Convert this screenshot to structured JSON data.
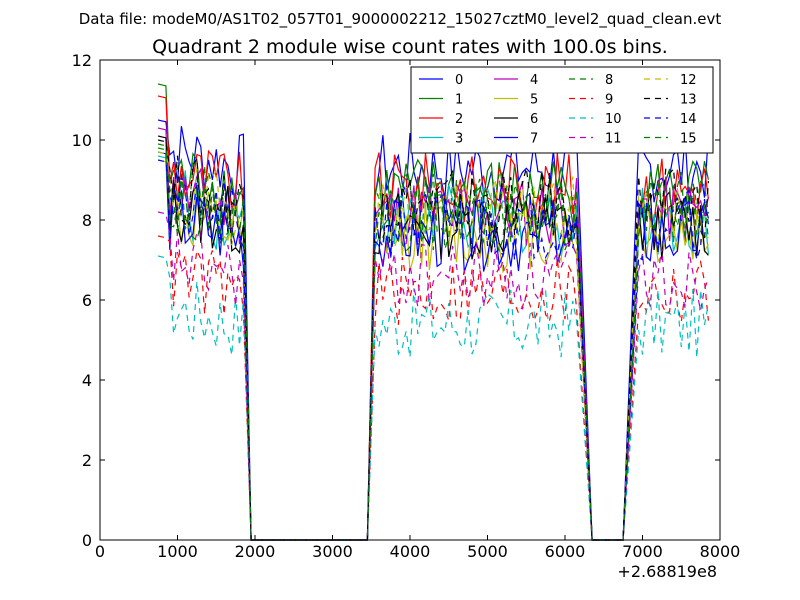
{
  "chart_data": {
    "type": "line",
    "suptitle": "Data file: modeM0/AS1T02_057T01_9000002212_15027cztM0_level2_quad_clean.evt",
    "title": "Quadrant 2 module wise count rates with 100.0s bins.",
    "xlabel": "",
    "ylabel": "",
    "x_offset_label": "+2.68819e8",
    "xlim": [
      0,
      8000
    ],
    "ylim": [
      0,
      12
    ],
    "x_ticks": [
      "0",
      "1000",
      "2000",
      "3000",
      "4000",
      "5000",
      "6000",
      "7000",
      "8000"
    ],
    "y_ticks": [
      "0",
      "2",
      "4",
      "6",
      "8",
      "10",
      "12"
    ],
    "legend_position": "top-right",
    "legend_columns": 4,
    "series": [
      {
        "name": "0",
        "color": "#0000ff",
        "dash": "solid",
        "level": 9.3,
        "start": 10.0
      },
      {
        "name": "1",
        "color": "#008000",
        "dash": "solid",
        "level": 8.7,
        "start": 10.9
      },
      {
        "name": "2",
        "color": "#ff0000",
        "dash": "solid",
        "level": 8.8,
        "start": 10.6
      },
      {
        "name": "3",
        "color": "#00bfbf",
        "dash": "solid",
        "level": 8.0,
        "start": 9.1
      },
      {
        "name": "4",
        "color": "#bf00bf",
        "dash": "solid",
        "level": 8.2,
        "start": 9.8
      },
      {
        "name": "5",
        "color": "#bfbf00",
        "dash": "solid",
        "level": 7.6,
        "start": 9.0
      },
      {
        "name": "6",
        "color": "#000000",
        "dash": "solid",
        "level": 7.9,
        "start": 9.6
      },
      {
        "name": "7",
        "color": "#0000ff",
        "dash": "solid",
        "level": 7.6,
        "start": 9.2
      },
      {
        "name": "8",
        "color": "#008000",
        "dash": "dashed",
        "level": 8.3,
        "start": 9.4
      },
      {
        "name": "9",
        "color": "#ff0000",
        "dash": "dashed",
        "level": 6.2,
        "start": 7.1
      },
      {
        "name": "10",
        "color": "#00bfbf",
        "dash": "dashed",
        "level": 5.4,
        "start": 6.6
      },
      {
        "name": "11",
        "color": "#bf00bf",
        "dash": "dashed",
        "level": 6.6,
        "start": 7.7
      },
      {
        "name": "12",
        "color": "#bfbf00",
        "dash": "dashed",
        "level": 8.2,
        "start": 9.2
      },
      {
        "name": "13",
        "color": "#000000",
        "dash": "dashed",
        "level": 8.4,
        "start": 9.5
      },
      {
        "name": "14",
        "color": "#0000ff",
        "dash": "dashed",
        "level": 7.9,
        "start": 9.0
      },
      {
        "name": "15",
        "color": "#008000",
        "dash": "dashed",
        "level": 8.1,
        "start": 9.3
      }
    ],
    "segments": [
      {
        "x_start": 750,
        "x_end": 1850,
        "active": true
      },
      {
        "x_start": 1950,
        "x_end": 3450,
        "active": false
      },
      {
        "x_start": 3550,
        "x_end": 6150,
        "active": true
      },
      {
        "x_start": 6350,
        "x_end": 6750,
        "active": false
      },
      {
        "x_start": 6950,
        "x_end": 7850,
        "active": true
      }
    ]
  }
}
